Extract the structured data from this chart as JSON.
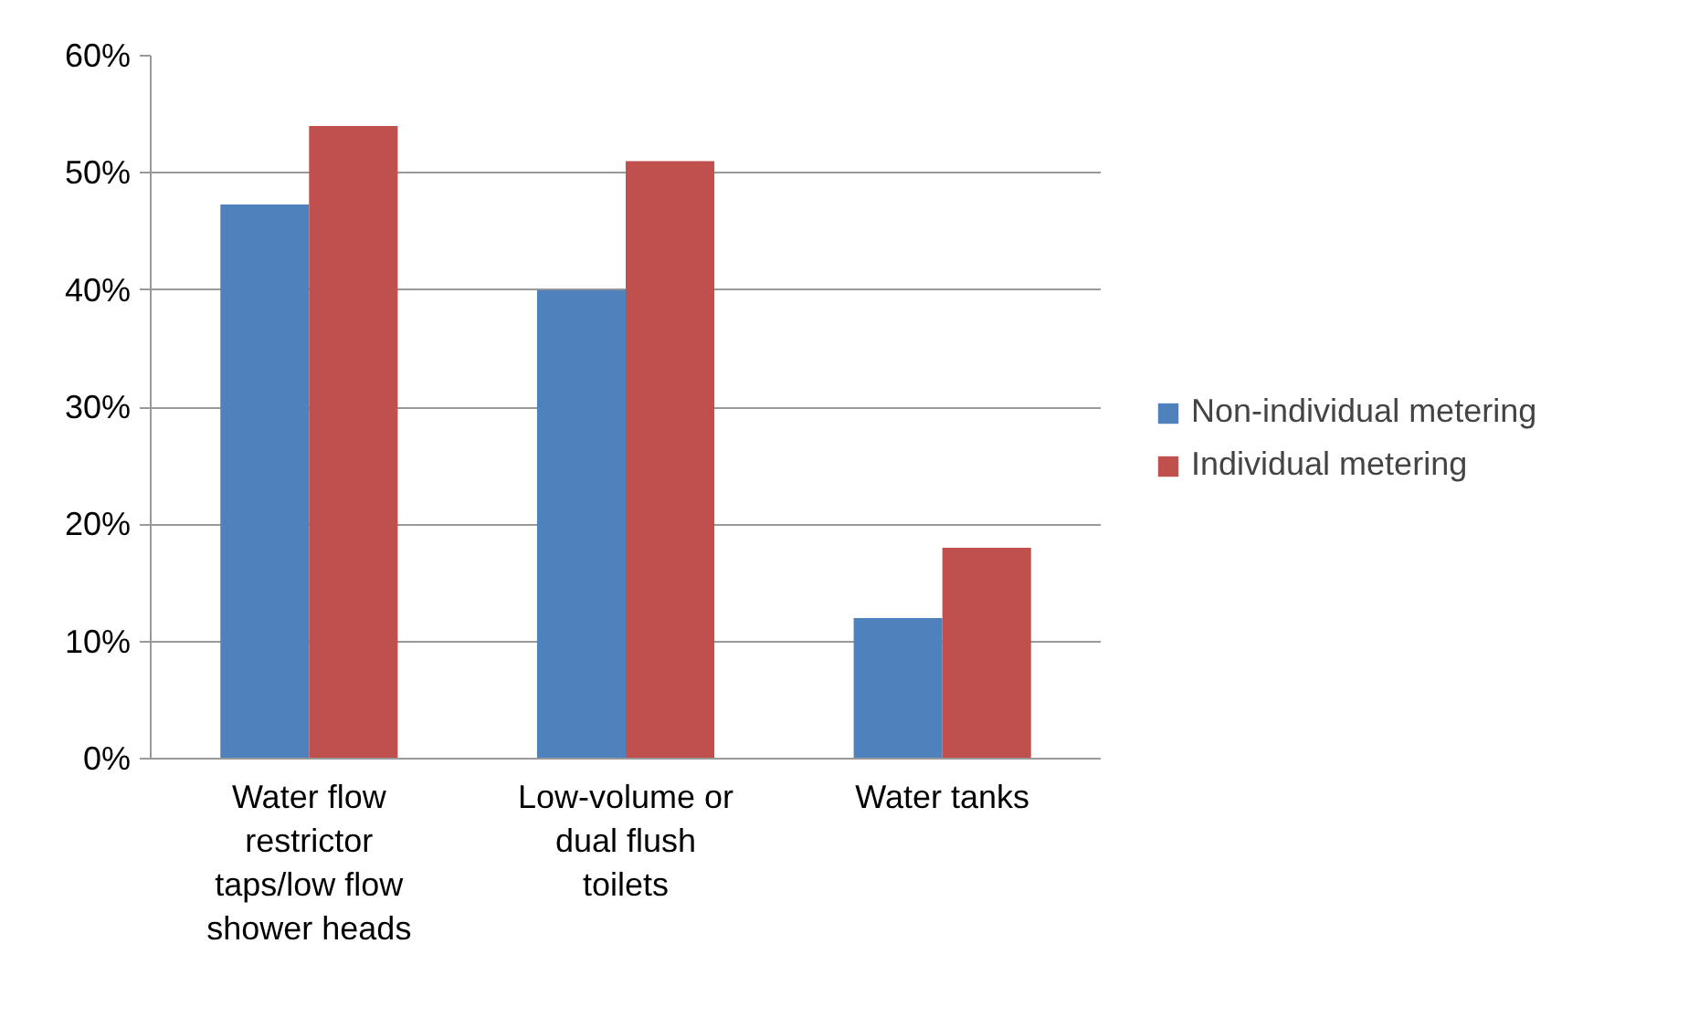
{
  "chart_data": {
    "type": "bar",
    "categories": [
      "Water flow restrictor taps/low flow shower heads",
      "Low-volume or dual flush toilets",
      "Water tanks"
    ],
    "series": [
      {
        "name": "Non-individual metering",
        "color": "#4f81bd",
        "values": [
          47.3,
          40,
          12
        ]
      },
      {
        "name": "Individual metering",
        "color": "#c0504d",
        "values": [
          54,
          51,
          18
        ]
      }
    ],
    "ylim": [
      0,
      60
    ],
    "yticks": [
      {
        "value": 0,
        "label": "0%"
      },
      {
        "value": 10,
        "label": "10%"
      },
      {
        "value": 20,
        "label": "20%"
      },
      {
        "value": 30,
        "label": "30%"
      },
      {
        "value": 40,
        "label": "40%"
      },
      {
        "value": 50,
        "label": "50%"
      },
      {
        "value": 60,
        "label": "60%"
      }
    ],
    "grid": "y",
    "legend": "right"
  }
}
